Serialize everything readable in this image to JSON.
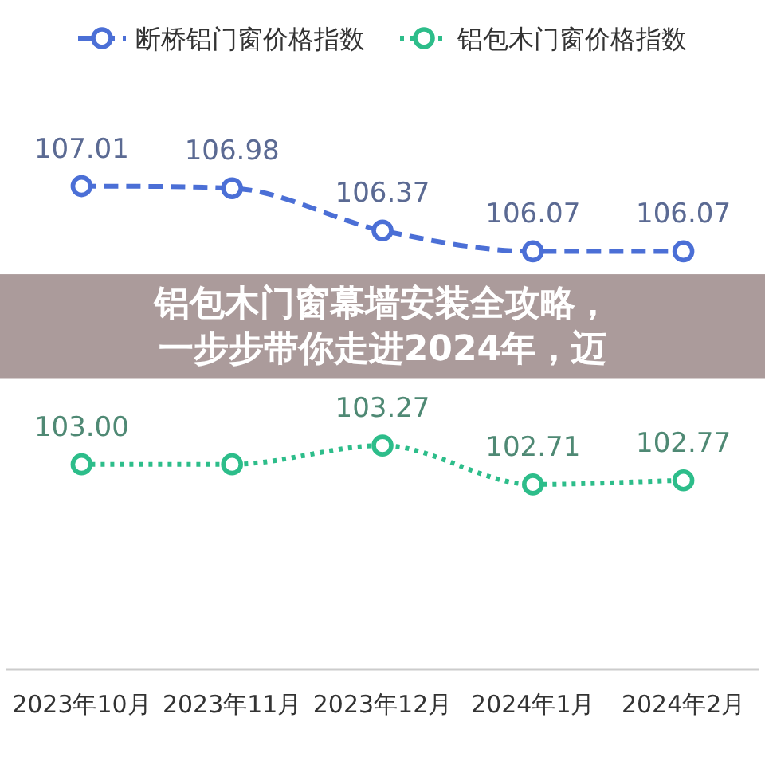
{
  "chart_data": {
    "type": "line",
    "title": "铝包木门窗幕墙安装全攻略，一步步带你走进2024年，迈",
    "categories": [
      "2023年10月",
      "2023年11月",
      "2023年12月",
      "2024年1月",
      "2024年2月"
    ],
    "series": [
      {
        "name": "断桥铝门窗价格指数",
        "color": "#4b6fd6",
        "line_style": "dashed",
        "values": [
          107.01,
          106.98,
          106.37,
          106.07,
          106.07
        ],
        "value_labels": [
          "107.01",
          "106.98",
          "106.37",
          "106.07",
          "106.07"
        ]
      },
      {
        "name": "铝包木门窗价格指数",
        "color": "#2dbd8a",
        "line_style": "dotted",
        "values": [
          103.0,
          103.0,
          103.27,
          102.71,
          102.77
        ],
        "value_labels": [
          "103.00",
          null,
          "103.27",
          "102.71",
          "102.77"
        ]
      }
    ],
    "marker": "circle",
    "legend": "top",
    "grid": false
  }
}
